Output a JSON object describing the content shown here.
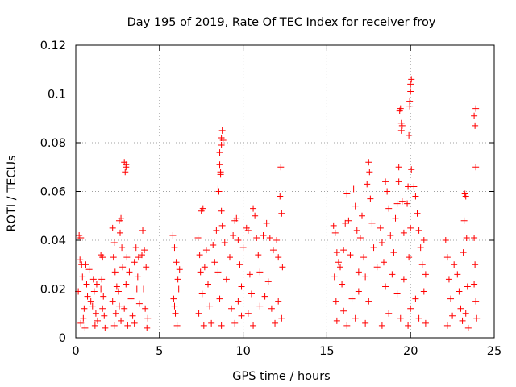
{
  "chart_data": {
    "type": "scatter",
    "title": "Day 195 of 2019, Rate Of TEC Index for receiver froy",
    "xlabel": "GPS time / hours",
    "ylabel": "ROTI / TECUs",
    "xlim": [
      0,
      25
    ],
    "ylim": [
      0,
      0.12
    ],
    "xticks": [
      0,
      5,
      10,
      15,
      20,
      25
    ],
    "xtick_labels": [
      "0",
      "5",
      "10",
      "15",
      "20",
      "25"
    ],
    "yticks": [
      0,
      0.02,
      0.04,
      0.06,
      0.08,
      0.1,
      0.12
    ],
    "ytick_labels": [
      "0",
      "0.02",
      "0.04",
      "0.06",
      "0.08",
      "0.1",
      "0.12"
    ],
    "grid": true,
    "marker": "+",
    "color": "#ff0000",
    "series": [
      {
        "name": "ROTI",
        "points": [
          [
            0.2,
            0.042
          ],
          [
            0.3,
            0.041
          ],
          [
            0.25,
            0.032
          ],
          [
            0.35,
            0.03
          ],
          [
            0.15,
            0.019
          ],
          [
            0.4,
            0.025
          ],
          [
            0.5,
            0.012
          ],
          [
            0.6,
            0.03
          ],
          [
            0.45,
            0.008
          ],
          [
            0.7,
            0.017
          ],
          [
            0.55,
            0.004
          ],
          [
            0.8,
            0.028
          ],
          [
            0.3,
            0.006
          ],
          [
            0.65,
            0.022
          ],
          [
            0.9,
            0.015
          ],
          [
            1.0,
            0.013
          ],
          [
            1.1,
            0.019
          ],
          [
            1.2,
            0.01
          ],
          [
            1.3,
            0.007
          ],
          [
            1.25,
            0.022
          ],
          [
            1.05,
            0.024
          ],
          [
            1.15,
            0.005
          ],
          [
            1.5,
            0.034
          ],
          [
            1.6,
            0.033
          ],
          [
            1.55,
            0.024
          ],
          [
            1.65,
            0.017
          ],
          [
            1.7,
            0.009
          ],
          [
            1.75,
            0.004
          ],
          [
            1.6,
            0.012
          ],
          [
            1.5,
            0.02
          ],
          [
            2.2,
            0.045
          ],
          [
            2.3,
            0.039
          ],
          [
            2.25,
            0.033
          ],
          [
            2.35,
            0.027
          ],
          [
            2.2,
            0.015
          ],
          [
            2.4,
            0.01
          ],
          [
            2.3,
            0.005
          ],
          [
            2.45,
            0.021
          ],
          [
            2.6,
            0.048
          ],
          [
            2.7,
            0.049
          ],
          [
            2.65,
            0.043
          ],
          [
            2.75,
            0.037
          ],
          [
            2.8,
            0.029
          ],
          [
            2.6,
            0.013
          ],
          [
            2.7,
            0.007
          ],
          [
            2.55,
            0.019
          ],
          [
            2.9,
            0.072
          ],
          [
            3.0,
            0.071
          ],
          [
            2.95,
            0.068
          ],
          [
            3.0,
            0.07
          ],
          [
            3.05,
            0.033
          ],
          [
            2.9,
            0.012
          ],
          [
            3.1,
            0.005
          ],
          [
            3.0,
            0.022
          ],
          [
            3.2,
            0.027
          ],
          [
            3.3,
            0.016
          ],
          [
            3.4,
            0.009
          ],
          [
            3.5,
            0.031
          ],
          [
            3.6,
            0.037
          ],
          [
            3.7,
            0.025
          ],
          [
            3.8,
            0.014
          ],
          [
            3.5,
            0.006
          ],
          [
            3.65,
            0.02
          ],
          [
            3.75,
            0.033
          ],
          [
            4.0,
            0.044
          ],
          [
            4.1,
            0.036
          ],
          [
            4.2,
            0.029
          ],
          [
            4.05,
            0.02
          ],
          [
            4.15,
            0.012
          ],
          [
            4.25,
            0.004
          ],
          [
            3.95,
            0.034
          ],
          [
            4.3,
            0.008
          ],
          [
            5.8,
            0.042
          ],
          [
            5.9,
            0.037
          ],
          [
            6.0,
            0.031
          ],
          [
            6.1,
            0.024
          ],
          [
            5.85,
            0.016
          ],
          [
            5.95,
            0.01
          ],
          [
            6.05,
            0.005
          ],
          [
            6.15,
            0.02
          ],
          [
            6.2,
            0.028
          ],
          [
            5.9,
            0.013
          ],
          [
            7.3,
            0.041
          ],
          [
            7.4,
            0.034
          ],
          [
            7.5,
            0.052
          ],
          [
            7.6,
            0.053
          ],
          [
            7.45,
            0.027
          ],
          [
            7.55,
            0.018
          ],
          [
            7.35,
            0.01
          ],
          [
            7.65,
            0.005
          ],
          [
            7.7,
            0.029
          ],
          [
            7.8,
            0.036
          ],
          [
            7.9,
            0.022
          ],
          [
            8.0,
            0.013
          ],
          [
            8.1,
            0.006
          ],
          [
            8.2,
            0.038
          ],
          [
            8.3,
            0.031
          ],
          [
            8.4,
            0.044
          ],
          [
            8.5,
            0.061
          ],
          [
            8.55,
            0.06
          ],
          [
            8.6,
            0.076
          ],
          [
            8.65,
            0.068
          ],
          [
            8.7,
            0.082
          ],
          [
            8.75,
            0.085
          ],
          [
            8.7,
            0.079
          ],
          [
            8.8,
            0.081
          ],
          [
            8.6,
            0.071
          ],
          [
            8.65,
            0.067
          ],
          [
            8.7,
            0.052
          ],
          [
            8.75,
            0.046
          ],
          [
            8.5,
            0.027
          ],
          [
            8.6,
            0.016
          ],
          [
            8.7,
            0.005
          ],
          [
            8.9,
            0.039
          ],
          [
            9.0,
            0.024
          ],
          [
            9.2,
            0.033
          ],
          [
            9.4,
            0.042
          ],
          [
            9.5,
            0.048
          ],
          [
            9.6,
            0.049
          ],
          [
            9.7,
            0.04
          ],
          [
            9.8,
            0.03
          ],
          [
            9.9,
            0.021
          ],
          [
            9.3,
            0.012
          ],
          [
            9.5,
            0.006
          ],
          [
            9.7,
            0.015
          ],
          [
            9.9,
            0.009
          ],
          [
            10.0,
            0.037
          ],
          [
            10.2,
            0.045
          ],
          [
            10.3,
            0.044
          ],
          [
            10.4,
            0.026
          ],
          [
            10.5,
            0.018
          ],
          [
            10.6,
            0.053
          ],
          [
            10.7,
            0.05
          ],
          [
            10.8,
            0.041
          ],
          [
            10.9,
            0.034
          ],
          [
            11.0,
            0.027
          ],
          [
            10.3,
            0.01
          ],
          [
            10.6,
            0.005
          ],
          [
            11.0,
            0.013
          ],
          [
            11.2,
            0.042
          ],
          [
            11.4,
            0.047
          ],
          [
            11.6,
            0.041
          ],
          [
            11.8,
            0.036
          ],
          [
            11.5,
            0.023
          ],
          [
            11.7,
            0.012
          ],
          [
            11.9,
            0.006
          ],
          [
            11.3,
            0.017
          ],
          [
            12.0,
            0.04
          ],
          [
            12.1,
            0.033
          ],
          [
            12.2,
            0.058
          ],
          [
            12.3,
            0.051
          ],
          [
            12.25,
            0.07
          ],
          [
            12.35,
            0.029
          ],
          [
            12.1,
            0.015
          ],
          [
            12.3,
            0.008
          ],
          [
            15.4,
            0.046
          ],
          [
            15.5,
            0.043
          ],
          [
            15.6,
            0.035
          ],
          [
            15.45,
            0.025
          ],
          [
            15.55,
            0.015
          ],
          [
            15.6,
            0.007
          ],
          [
            15.7,
            0.031
          ],
          [
            15.8,
            0.029
          ],
          [
            15.9,
            0.022
          ],
          [
            16.0,
            0.036
          ],
          [
            16.1,
            0.047
          ],
          [
            16.2,
            0.059
          ],
          [
            16.3,
            0.048
          ],
          [
            16.0,
            0.011
          ],
          [
            16.2,
            0.005
          ],
          [
            16.4,
            0.034
          ],
          [
            16.6,
            0.061
          ],
          [
            16.7,
            0.054
          ],
          [
            16.8,
            0.044
          ],
          [
            16.9,
            0.027
          ],
          [
            16.5,
            0.016
          ],
          [
            16.7,
            0.008
          ],
          [
            16.9,
            0.019
          ],
          [
            17.0,
            0.041
          ],
          [
            17.1,
            0.05
          ],
          [
            17.2,
            0.033
          ],
          [
            17.3,
            0.025
          ],
          [
            17.4,
            0.063
          ],
          [
            17.5,
            0.072
          ],
          [
            17.55,
            0.068
          ],
          [
            17.6,
            0.057
          ],
          [
            17.7,
            0.047
          ],
          [
            17.5,
            0.015
          ],
          [
            17.3,
            0.006
          ],
          [
            17.8,
            0.037
          ],
          [
            18.0,
            0.029
          ],
          [
            18.2,
            0.045
          ],
          [
            18.3,
            0.039
          ],
          [
            18.4,
            0.031
          ],
          [
            18.5,
            0.064
          ],
          [
            18.6,
            0.06
          ],
          [
            18.7,
            0.053
          ],
          [
            18.8,
            0.042
          ],
          [
            18.5,
            0.021
          ],
          [
            18.7,
            0.01
          ],
          [
            18.3,
            0.005
          ],
          [
            18.9,
            0.026
          ],
          [
            19.0,
            0.035
          ],
          [
            19.1,
            0.049
          ],
          [
            19.2,
            0.055
          ],
          [
            19.3,
            0.064
          ],
          [
            19.35,
            0.093
          ],
          [
            19.4,
            0.094
          ],
          [
            19.45,
            0.088
          ],
          [
            19.5,
            0.087
          ],
          [
            19.45,
            0.085
          ],
          [
            19.3,
            0.07
          ],
          [
            19.5,
            0.056
          ],
          [
            19.6,
            0.043
          ],
          [
            19.2,
            0.018
          ],
          [
            19.4,
            0.008
          ],
          [
            19.6,
            0.024
          ],
          [
            19.8,
            0.055
          ],
          [
            19.85,
            0.062
          ],
          [
            19.9,
            0.083
          ],
          [
            19.95,
            0.097
          ],
          [
            20.0,
            0.104
          ],
          [
            20.05,
            0.106
          ],
          [
            20.0,
            0.101
          ],
          [
            19.95,
            0.095
          ],
          [
            20.05,
            0.069
          ],
          [
            20.0,
            0.045
          ],
          [
            19.9,
            0.033
          ],
          [
            20.0,
            0.012
          ],
          [
            19.85,
            0.005
          ],
          [
            20.2,
            0.062
          ],
          [
            20.3,
            0.058
          ],
          [
            20.4,
            0.051
          ],
          [
            20.5,
            0.044
          ],
          [
            20.6,
            0.037
          ],
          [
            20.7,
            0.03
          ],
          [
            20.8,
            0.04
          ],
          [
            20.9,
            0.026
          ],
          [
            20.3,
            0.016
          ],
          [
            20.5,
            0.008
          ],
          [
            20.8,
            0.019
          ],
          [
            20.9,
            0.006
          ],
          [
            22.1,
            0.04
          ],
          [
            22.2,
            0.033
          ],
          [
            22.3,
            0.024
          ],
          [
            22.4,
            0.016
          ],
          [
            22.5,
            0.009
          ],
          [
            22.2,
            0.005
          ],
          [
            22.6,
            0.03
          ],
          [
            22.8,
            0.026
          ],
          [
            22.9,
            0.019
          ],
          [
            23.0,
            0.012
          ],
          [
            23.1,
            0.007
          ],
          [
            23.15,
            0.035
          ],
          [
            23.2,
            0.048
          ],
          [
            23.25,
            0.059
          ],
          [
            23.3,
            0.058
          ],
          [
            23.35,
            0.041
          ],
          [
            23.4,
            0.021
          ],
          [
            23.3,
            0.01
          ],
          [
            23.45,
            0.004
          ],
          [
            23.8,
            0.091
          ],
          [
            23.9,
            0.094
          ],
          [
            23.85,
            0.087
          ],
          [
            23.9,
            0.07
          ],
          [
            23.8,
            0.041
          ],
          [
            23.85,
            0.03
          ],
          [
            23.9,
            0.015
          ],
          [
            23.95,
            0.008
          ],
          [
            23.8,
            0.022
          ]
        ]
      }
    ]
  }
}
